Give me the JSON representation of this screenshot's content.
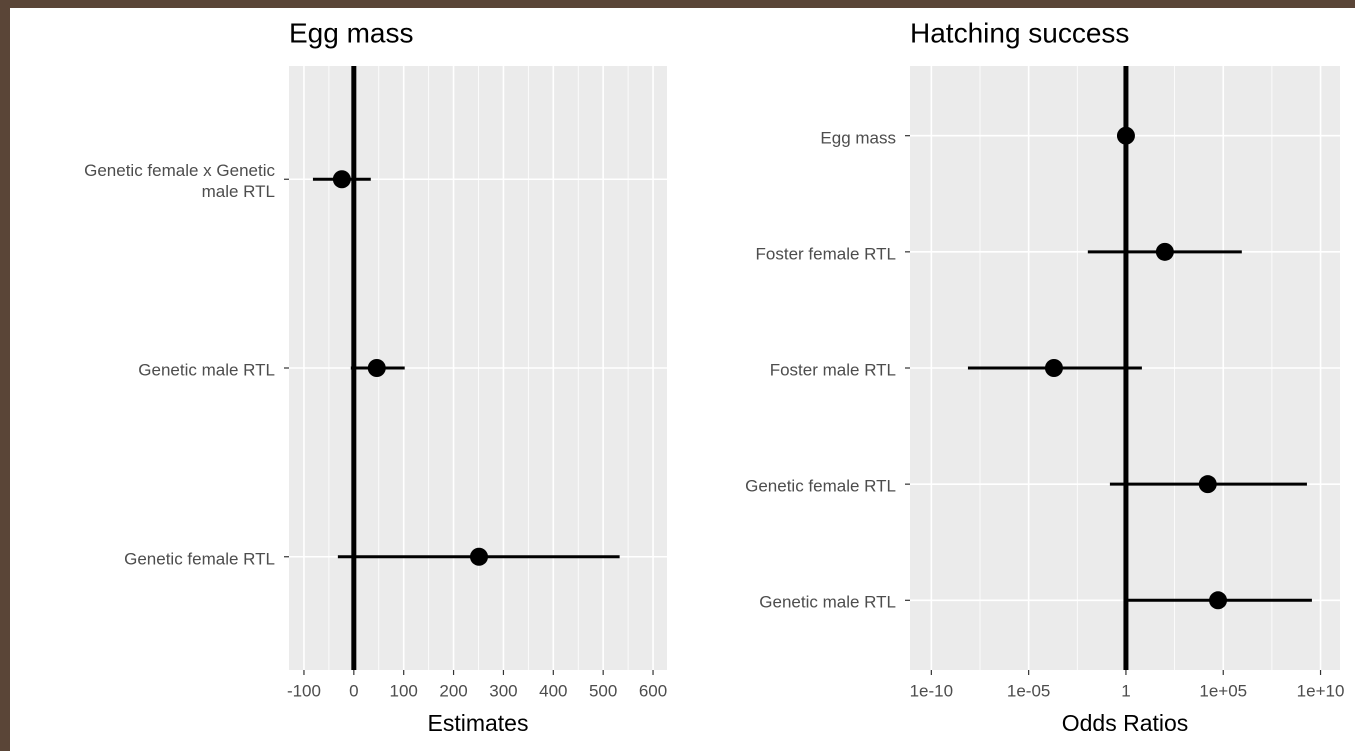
{
  "chart_data": [
    {
      "type": "forest",
      "title": "Egg mass",
      "x_label": "Estimates",
      "categories": [
        "Genetic female x Genetic\nmale RTL",
        "Genetic male RTL",
        "Genetic female RTL"
      ],
      "values": [
        -24,
        46,
        251
      ],
      "lower": [
        -82,
        -6,
        -32
      ],
      "upper": [
        34,
        102,
        533
      ],
      "xlim": [
        -130,
        628
      ],
      "xticks": [
        -100,
        0,
        100,
        200,
        300,
        400,
        500,
        600
      ],
      "log_x": false,
      "xintercept": 0,
      "color": "#000000",
      "grid": true
    },
    {
      "type": "forest",
      "title": "Hatching success",
      "x_label": "Odds Ratios",
      "categories": [
        "Egg mass",
        "Foster female RTL",
        "Foster male RTL",
        "Genetic female RTL",
        "Genetic male RTL"
      ],
      "values": [
        1,
        100,
        0.0002,
        16000,
        54000
      ],
      "lower": [
        0.95,
        0.011,
        7.6e-09,
        0.15,
        1.3
      ],
      "upper": [
        1.05,
        900000,
        6.6,
        2000000000,
        3600000000
      ],
      "xlim": [
        8e-12,
        100000000000.0
      ],
      "xticks": [
        1e-10,
        {
          "value": 1e-05,
          "label": "1e-05"
        },
        1,
        {
          "value": 100000,
          "label": "1e+05"
        },
        {
          "value": 10000000000,
          "label": "1e+10"
        }
      ],
      "log_x": true,
      "xintercept": 1,
      "color": "#000000",
      "grid": true
    }
  ]
}
